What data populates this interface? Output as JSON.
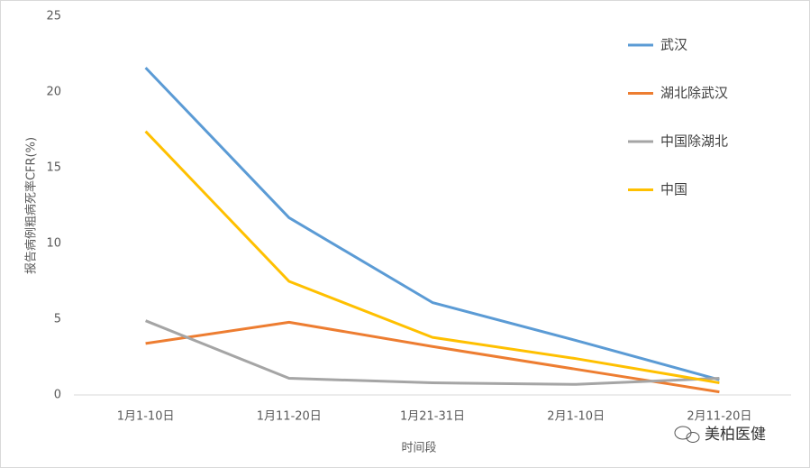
{
  "chart_data": {
    "type": "line",
    "y_label": "报告病例粗病死率CFR(%)",
    "x_label": "时间段",
    "watermark": "美柏医健",
    "categories": [
      "1月1-10日",
      "1月11-20日",
      "1月21-31日",
      "2月1-10日",
      "2月11-20日"
    ],
    "series": [
      {
        "name": "武汉",
        "color": "#5b9bd5",
        "values": [
          21.6,
          11.7,
          6.1,
          3.6,
          1.0
        ]
      },
      {
        "name": "湖北除武汉",
        "color": "#ed7d31",
        "values": [
          3.4,
          4.8,
          3.2,
          1.7,
          0.2
        ]
      },
      {
        "name": "中国除湖北",
        "color": "#a5a5a5",
        "values": [
          4.9,
          1.1,
          0.8,
          0.7,
          1.1
        ]
      },
      {
        "name": "中国",
        "color": "#ffc000",
        "values": [
          17.4,
          7.5,
          3.8,
          2.4,
          0.8
        ]
      }
    ],
    "ylim": [
      0,
      25
    ],
    "yticks": [
      0,
      5,
      10,
      15,
      20,
      25
    ],
    "grid": false,
    "legend": "right"
  }
}
